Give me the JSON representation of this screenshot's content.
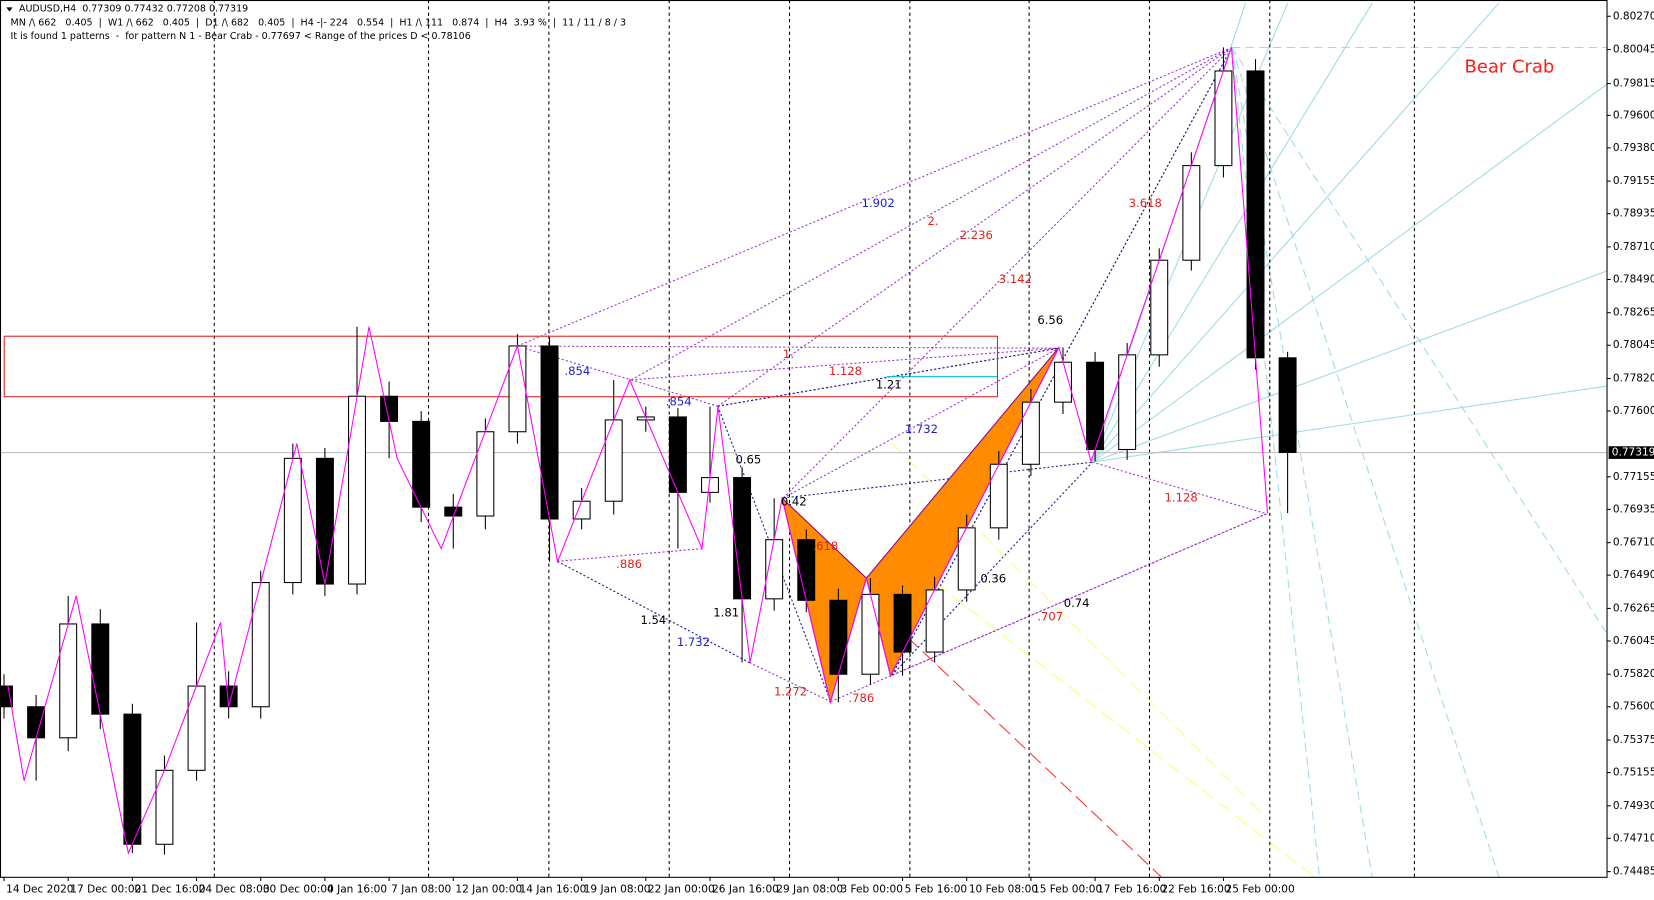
{
  "header": {
    "symbol_line": "AUDUSD,H4  0.77309 0.77432 0.77208 0.77319",
    "stats_line": "MN /\\ 662   0.405  |  W1 /\\ 662   0.405  |  D1 /\\ 682   0.405  |  H4 -|- 224   0.554  |  H1 /\\ 111   0.874  |  H4  3.93 %  |  11 / 11 / 8 / 3",
    "pattern_line": "It is found 1 patterns  -  for pattern N 1 - Bear Crab - 0.77697 < Range of the prices D < 0.78106"
  },
  "chart_data": {
    "type": "candlestick",
    "title": "Bear Crab",
    "current_price": {
      "value": 0.77319,
      "label": "0.77319"
    },
    "d_range": [
      0.77697,
      0.78106
    ],
    "xlim": [
      -1,
      399.5
    ],
    "ylim": [
      0.7445,
      0.8038
    ],
    "xticks": [
      {
        "value": 0,
        "label": "14 Dec 2020"
      },
      {
        "value": 16,
        "label": "17 Dec 00:00"
      },
      {
        "value": 32,
        "label": "21 Dec 16:00"
      },
      {
        "value": 48,
        "label": "24 Dec 08:00"
      },
      {
        "value": 64,
        "label": "30 Dec 00:00"
      },
      {
        "value": 80,
        "label": "4 Jan 16:00"
      },
      {
        "value": 96,
        "label": "7 Jan 08:00"
      },
      {
        "value": 112,
        "label": "12 Jan 00:00"
      },
      {
        "value": 128,
        "label": "14 Jan 16:00"
      },
      {
        "value": 144,
        "label": "19 Jan 08:00"
      },
      {
        "value": 160,
        "label": "22 Jan 00:00"
      },
      {
        "value": 176,
        "label": "26 Jan 16:00"
      },
      {
        "value": 192,
        "label": "29 Jan 08:00"
      },
      {
        "value": 208,
        "label": "3 Feb 00:00"
      },
      {
        "value": 224,
        "label": "5 Feb 16:00"
      },
      {
        "value": 240,
        "label": "10 Feb 08:00"
      },
      {
        "value": 256,
        "label": "15 Feb 00:00"
      },
      {
        "value": 272,
        "label": "17 Feb 16:00"
      },
      {
        "value": 288,
        "label": "22 Feb 16:00"
      },
      {
        "value": 304,
        "label": "25 Feb 00:00"
      }
    ],
    "yticks": [
      {
        "value": 0.8027,
        "label": "0.80270"
      },
      {
        "value": 0.80045,
        "label": "0.80045"
      },
      {
        "value": 0.79815,
        "label": "0.79815"
      },
      {
        "value": 0.796,
        "label": "0.79600"
      },
      {
        "value": 0.7938,
        "label": "0.79380"
      },
      {
        "value": 0.79155,
        "label": "0.79155"
      },
      {
        "value": 0.78935,
        "label": "0.78935"
      },
      {
        "value": 0.7871,
        "label": "0.78710"
      },
      {
        "value": 0.7849,
        "label": "0.78490"
      },
      {
        "value": 0.78265,
        "label": "0.78265"
      },
      {
        "value": 0.78045,
        "label": "0.78045"
      },
      {
        "value": 0.7782,
        "label": "0.77820"
      },
      {
        "value": 0.776,
        "label": "0.77600"
      },
      {
        "value": 0.77155,
        "label": "0.77155"
      },
      {
        "value": 0.76935,
        "label": "0.76935"
      },
      {
        "value": 0.7671,
        "label": "0.76710"
      },
      {
        "value": 0.7649,
        "label": "0.76490"
      },
      {
        "value": 0.76265,
        "label": "0.76265"
      },
      {
        "value": 0.76045,
        "label": "0.76045"
      },
      {
        "value": 0.7582,
        "label": "0.75820"
      },
      {
        "value": 0.756,
        "label": "0.75600"
      },
      {
        "value": 0.75375,
        "label": "0.75375"
      },
      {
        "value": 0.75155,
        "label": "0.75155"
      },
      {
        "value": 0.7493,
        "label": "0.74930"
      },
      {
        "value": 0.7471,
        "label": "0.74710"
      },
      {
        "value": 0.74485,
        "label": "0.74485"
      }
    ],
    "x": [
      0,
      8,
      16,
      24,
      32,
      40,
      48,
      56,
      64,
      72,
      80,
      88,
      96,
      104,
      112,
      120,
      128,
      136,
      144,
      152,
      160,
      168,
      176,
      184,
      192,
      200,
      208,
      216,
      224,
      232,
      240,
      248,
      256,
      264,
      272,
      280,
      288,
      296,
      304,
      312,
      320
    ],
    "open": [
      0.7574,
      0.756,
      0.7539,
      0.7616,
      0.7555,
      0.7467,
      0.7517,
      0.7574,
      0.756,
      0.7644,
      0.7728,
      0.7643,
      0.777,
      0.7753,
      0.7695,
      0.7689,
      0.7746,
      0.7804,
      0.7687,
      0.7699,
      0.7754,
      0.7756,
      0.7705,
      0.7715,
      0.7633,
      0.7673,
      0.7632,
      0.7582,
      0.7636,
      0.7597,
      0.7639,
      0.7681,
      0.7724,
      0.7766,
      0.7793,
      0.7734,
      0.7798,
      0.7862,
      0.7926,
      0.799,
      0.7796
    ],
    "high": [
      0.7582,
      0.7568,
      0.7635,
      0.7626,
      0.7562,
      0.7527,
      0.7617,
      0.7584,
      0.7652,
      0.7738,
      0.7735,
      0.7817,
      0.778,
      0.776,
      0.7704,
      0.7755,
      0.7812,
      0.781,
      0.7708,
      0.7781,
      0.7763,
      0.7762,
      0.7763,
      0.7722,
      0.7701,
      0.768,
      0.764,
      0.7647,
      0.7642,
      0.7648,
      0.769,
      0.7733,
      0.7775,
      0.7803,
      0.78,
      0.7806,
      0.787,
      0.7935,
      0.8006,
      0.7998,
      0.78
    ],
    "low": [
      0.7552,
      0.751,
      0.753,
      0.7545,
      0.7461,
      0.746,
      0.751,
      0.7552,
      0.7552,
      0.7636,
      0.7635,
      0.7636,
      0.7728,
      0.7685,
      0.7667,
      0.768,
      0.7738,
      0.7658,
      0.768,
      0.769,
      0.7746,
      0.7667,
      0.7698,
      0.759,
      0.7625,
      0.7624,
      0.7563,
      0.7575,
      0.7581,
      0.759,
      0.7631,
      0.7673,
      0.7716,
      0.7758,
      0.7726,
      0.7727,
      0.779,
      0.7855,
      0.7918,
      0.7788,
      0.7691
    ],
    "close": [
      0.756,
      0.7539,
      0.7616,
      0.7555,
      0.7467,
      0.7517,
      0.7574,
      0.756,
      0.7644,
      0.7728,
      0.7643,
      0.777,
      0.7753,
      0.7695,
      0.7689,
      0.7746,
      0.7804,
      0.7687,
      0.7699,
      0.7754,
      0.7756,
      0.7705,
      0.7715,
      0.7633,
      0.7673,
      0.7632,
      0.7582,
      0.7636,
      0.7597,
      0.7639,
      0.7681,
      0.7724,
      0.7766,
      0.7793,
      0.7734,
      0.7798,
      0.7862,
      0.7926,
      0.799,
      0.7796,
      0.7732
    ],
    "zigzag": {
      "color": "#ff00ff",
      "x": [
        1,
        5,
        18,
        31,
        40,
        54,
        56,
        73,
        80,
        91,
        98,
        109,
        128,
        138,
        156,
        174,
        178,
        186,
        194,
        206,
        215,
        221,
        263,
        271,
        306,
        315
      ],
      "values": [
        0.7574,
        0.751,
        0.7635,
        0.7461,
        0.7517,
        0.7617,
        0.756,
        0.7738,
        0.7643,
        0.7817,
        0.7728,
        0.7667,
        0.7804,
        0.7658,
        0.7781,
        0.7667,
        0.7763,
        0.759,
        0.7701,
        0.7563,
        0.7647,
        0.7581,
        0.7803,
        0.7726,
        0.8006,
        0.7691
      ]
    },
    "pattern": {
      "color": "#ff8c00",
      "x": [
        194,
        206,
        215,
        221,
        263
      ],
      "values": [
        0.7701,
        0.7563,
        0.7647,
        0.7581,
        0.7803
      ]
    },
    "ratio_labels": [
      "1.902",
      "2.",
      "2.236",
      "3.142",
      "6.56",
      "1.",
      "1.128",
      ".854",
      "1.21",
      ".854",
      "1.732",
      "0.65",
      "0.42",
      ".618",
      ".886",
      "0.36",
      "0.74",
      "1.81",
      ".707",
      "1.54",
      "1.732",
      "1.272",
      ".786",
      "1.128",
      "3.618"
    ]
  }
}
